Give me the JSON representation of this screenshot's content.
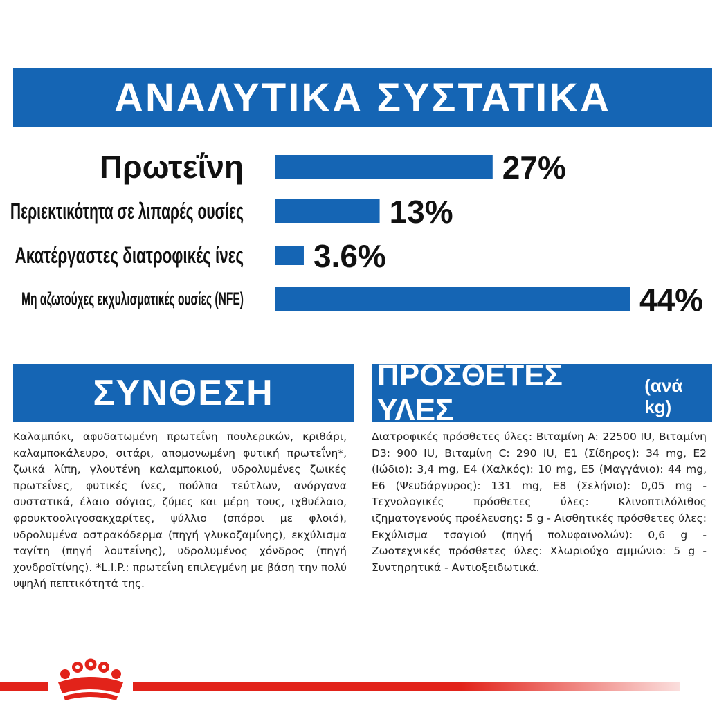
{
  "title": "ΑΝΑΛΥΤΙΚΑ ΣΥΣΤΑΤΙΚΑ",
  "chart_data": {
    "type": "bar",
    "orientation": "horizontal",
    "categories": [
      "Πρωτεΐνη",
      "Περιεκτικότητα σε λιπαρές ουσίες",
      "Ακατέργαστες διατροφικές ίνες",
      "Μη αζωτούχες εκχυλισματικές ουσίες (NFE)"
    ],
    "values": [
      27,
      13,
      3.6,
      44
    ],
    "value_labels": [
      "27%",
      "13%",
      "3.6%",
      "44%"
    ],
    "xlim": [
      0,
      44
    ],
    "grid": false,
    "colors": {
      "bar": "#1565b4"
    }
  },
  "composition": {
    "heading": "ΣΥΝΘΕΣΗ",
    "text": "Καλαμπόκι, αφυδατωμένη πρωτεΐνη πουλερικών, κριθάρι, καλαμποκάλευρο, σιτάρι, απομονωμένη φυτική πρωτεΐνη*, ζωικά λίπη, γλουτένη καλαμποκιού, υδρολυμένες ζωικές πρωτεΐνες, φυτικές ίνες, πούλπα τεύτλων, ανόργανα συστατικά, έλαιο σόγιας, ζύμες και μέρη τους, ιχθυέλαιο, φρουκτοολιγοσακχαρίτες, ψύλλιο (σπόροι με φλοιό), υδρολυμένα οστρακόδερμα (πηγή γλυκοζαμίνης), εκχύλισμα ταγίτη (πηγή λουτεΐνης), υδρολυμένος χόνδρος (πηγή χονδροϊτίνης). *L.I.P.: πρωτεΐνη επιλεγμένη με βάση την πολύ υψηλή πεπτικότητά της."
  },
  "additives": {
    "heading": "ΠΡΟΣΘΕΤΕΣ ΥΛΕΣ",
    "heading_suffix": "(ανά kg)",
    "text": "Διατροφικές πρόσθετες ύλες: Βιταμίνη A: 22500 IU, Βιταμίνη D3: 900 IU, Βιταμίνη C: 290 IU, E1 (Σίδηρος): 34 mg, E2 (Ιώδιο): 3,4 mg, E4 (Χαλκός): 10 mg, E5 (Μαγγάνιο): 44 mg, E6 (Ψευδάργυρος): 131 mg, E8 (Σελήνιο): 0,05 mg - Τεχνολογικές πρόσθετες ύλες: Κλινοπτιλόλιθος ιζηματογενούς προέλευσης: 5 g - Αισθητικές πρόσθετες ύλες: Εκχύλισμα τσαγιού (πηγή πολυφαινολών): 0,6 g - Ζωοτεχνικές πρόσθετες ύλες: Χλωριούχο αμμώνιο: 5 g - Συντηρητικά - Αντιοξειδωτικά."
  },
  "colors": {
    "brand_blue": "#1565b4",
    "brand_red": "#e2231a"
  },
  "icons": {
    "logo": "royal-canin-crown-icon"
  }
}
